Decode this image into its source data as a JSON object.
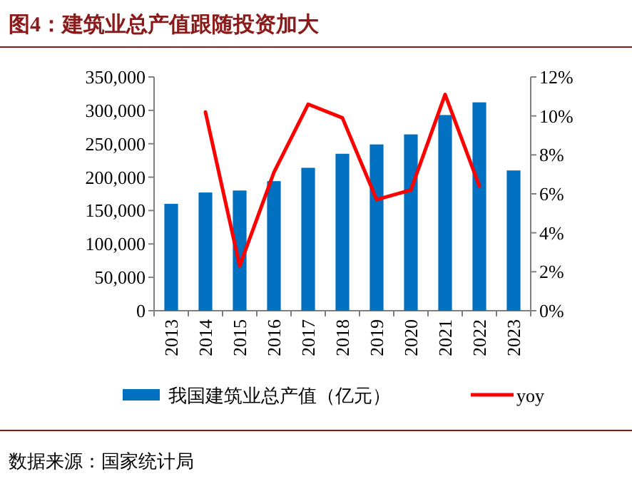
{
  "chart_data": {
    "type": "bar",
    "title": "图4：建筑业总产值跟随投资加大",
    "categories": [
      "2013",
      "2014",
      "2015",
      "2016",
      "2017",
      "2018",
      "2019",
      "2020",
      "2021",
      "2022",
      "2023"
    ],
    "series": [
      {
        "name": "我国建筑业总产值（亿元）",
        "color": "#0070c0",
        "values": [
          160000,
          177000,
          180000,
          194000,
          214000,
          235000,
          249000,
          264000,
          293000,
          312000,
          210000
        ]
      },
      {
        "name": "yoy",
        "type": "line",
        "axis": "y2",
        "color": "#ff0000",
        "values": [
          null,
          10.2,
          2.3,
          7.1,
          10.6,
          9.9,
          5.7,
          6.2,
          11.1,
          6.4,
          null
        ]
      }
    ],
    "ylim": [
      0,
      350000
    ],
    "yticks": [
      {
        "value": 0,
        "label": "0"
      },
      {
        "value": 50000,
        "label": "50,000"
      },
      {
        "value": 100000,
        "label": "100,000"
      },
      {
        "value": 150000,
        "label": "150,000"
      },
      {
        "value": 200000,
        "label": "200,000"
      },
      {
        "value": 250000,
        "label": "250,000"
      },
      {
        "value": 300000,
        "label": "300,000"
      },
      {
        "value": 350000,
        "label": "350,000"
      }
    ],
    "y2lim": [
      0,
      12
    ],
    "y2ticks": [
      {
        "value": 0,
        "label": "0%"
      },
      {
        "value": 2,
        "label": "2%"
      },
      {
        "value": 4,
        "label": "4%"
      },
      {
        "value": 6,
        "label": "6%"
      },
      {
        "value": 8,
        "label": "8%"
      },
      {
        "value": 10,
        "label": "10%"
      },
      {
        "value": 12,
        "label": "12%"
      }
    ],
    "grid": false,
    "legend": "bottom",
    "marker": "none",
    "annotations": [
      "数据来源：国家统计局"
    ]
  }
}
